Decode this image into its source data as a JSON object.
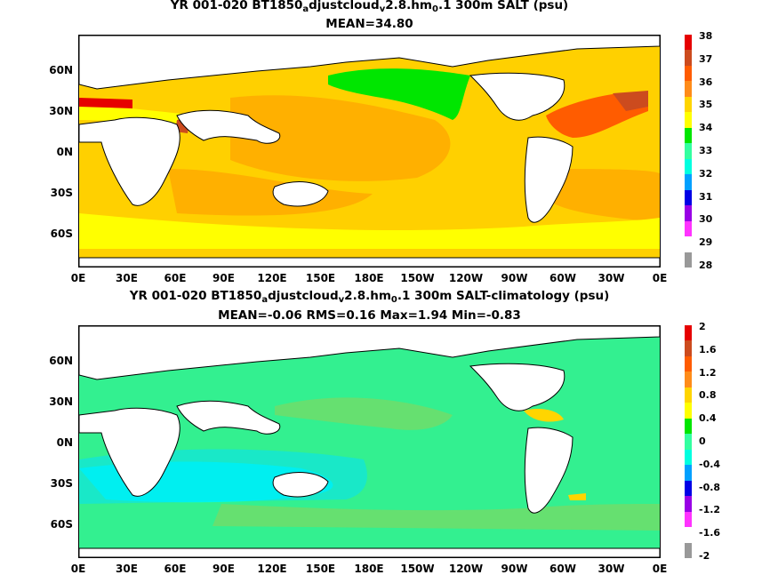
{
  "panels": [
    {
      "title_parts": [
        "YR 001-020 BT1850",
        "a",
        "djustcloud",
        "v",
        "2.8.hm",
        "0",
        ".1 300m SALT (psu)"
      ],
      "subtitle": "MEAN=34.80",
      "ylabels": [
        "60N",
        "30N",
        "0N",
        "30S",
        "60S"
      ],
      "xlabels": [
        "0E",
        "30E",
        "60E",
        "90E",
        "120E",
        "150E",
        "180E",
        "150W",
        "120W",
        "90W",
        "60W",
        "30W",
        "0E"
      ],
      "colorbar": {
        "labels": [
          "38",
          "37",
          "36",
          "35",
          "34",
          "33",
          "32",
          "31",
          "30",
          "29",
          "28"
        ],
        "colors": [
          "#e60000",
          "#cc4b1e",
          "#ff5c00",
          "#ff8c1a",
          "#ffd500",
          "#ffff00",
          "#00e600",
          "#33ffa0",
          "#00ffe0",
          "#00a0ff",
          "#0000e6",
          "#9900e6",
          "#ff33ff",
          "#ffffff",
          "#999999"
        ],
        "ocean_base": "#ffd000"
      }
    },
    {
      "title_parts": [
        "YR 001-020 BT1850",
        "a",
        "djustcloud",
        "v",
        "2.8.hm",
        "0",
        ".1 300m SALT-climatology (psu)"
      ],
      "subtitle": "MEAN=-0.06   RMS=0.16   Max=1.94   Min=-0.83",
      "ylabels": [
        "60N",
        "30N",
        "0N",
        "30S",
        "60S"
      ],
      "xlabels": [
        "0E",
        "30E",
        "60E",
        "90E",
        "120E",
        "150E",
        "180E",
        "150W",
        "120W",
        "90W",
        "60W",
        "30W",
        "0E"
      ],
      "colorbar": {
        "labels": [
          "2",
          "1.6",
          "1.2",
          "0.8",
          "0.4",
          "0",
          "-0.4",
          "-0.8",
          "-1.2",
          "-1.6",
          "-2"
        ],
        "colors": [
          "#e60000",
          "#cc4b1e",
          "#ff5c00",
          "#ff8c1a",
          "#ffd500",
          "#ffff00",
          "#00e600",
          "#33ffa0",
          "#00ffe0",
          "#00a0ff",
          "#0000e6",
          "#9900e6",
          "#ff33ff",
          "#ffffff",
          "#999999"
        ],
        "ocean_base": "#33f090"
      }
    }
  ]
}
